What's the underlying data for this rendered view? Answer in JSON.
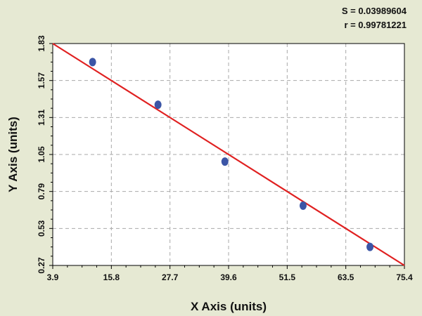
{
  "stats": {
    "s_text": "S = 0.03989604",
    "r_text": "r = 0.99781221"
  },
  "chart_data": {
    "type": "scatter",
    "title": "",
    "xlabel": "X Axis (units)",
    "ylabel": "Y Axis (units)",
    "xlim": [
      3.9,
      75.4
    ],
    "ylim": [
      0.27,
      1.83
    ],
    "x_ticks": [
      "3.9",
      "15.8",
      "27.7",
      "39.6",
      "51.5",
      "63.5",
      "75.4"
    ],
    "y_ticks": [
      "0.27",
      "0.53",
      "0.79",
      "1.05",
      "1.31",
      "1.57",
      "1.83"
    ],
    "grid": true,
    "points": [
      {
        "x": 12.0,
        "y": 1.7
      },
      {
        "x": 25.3,
        "y": 1.4
      },
      {
        "x": 38.9,
        "y": 1.0
      },
      {
        "x": 54.8,
        "y": 0.69
      },
      {
        "x": 68.4,
        "y": 0.4
      }
    ],
    "fit_line": {
      "x": [
        3.9,
        75.4
      ],
      "y": [
        1.83,
        0.27
      ]
    },
    "colors": {
      "background": "#e6e9d3",
      "plot_background": "#ffffff",
      "points": "#3b55a6",
      "fit_line": "#e02020",
      "grid": "#a9a9a9"
    }
  }
}
